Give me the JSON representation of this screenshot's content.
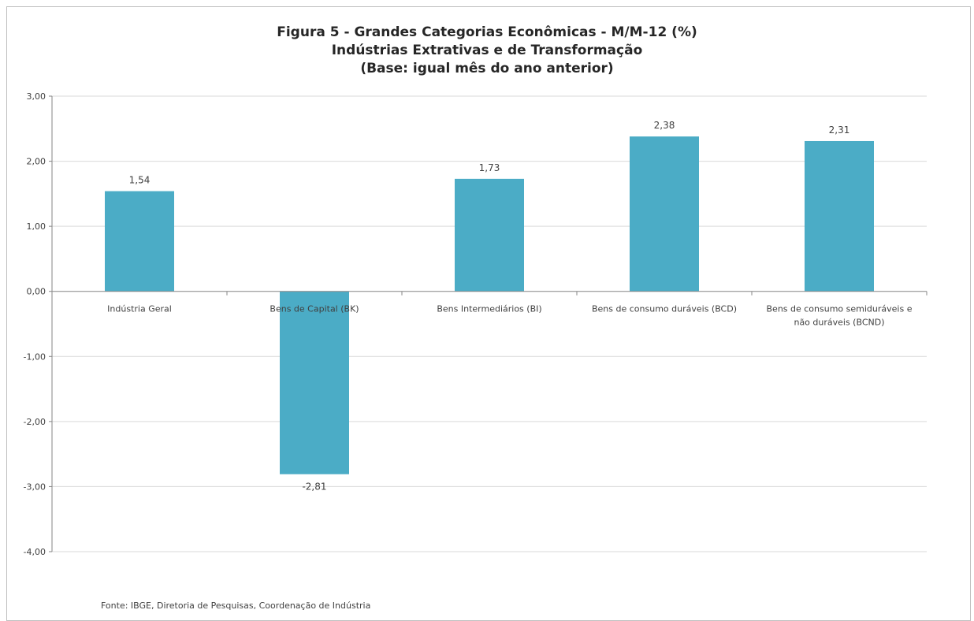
{
  "chart_data": {
    "type": "bar",
    "title": [
      "Figura 5 - Grandes Categorias Econômicas - M/M-12 (%)",
      "Indústrias  Extrativas e de Transformação",
      "(Base: igual mês do ano anterior)"
    ],
    "categories": [
      [
        "Indústria Geral"
      ],
      [
        "Bens de Capital (BK)"
      ],
      [
        "Bens Intermediários (BI)"
      ],
      [
        "Bens de consumo duráveis (BCD)"
      ],
      [
        "Bens de consumo semiduráveis e",
        "não duráveis (BCND)"
      ]
    ],
    "values": [
      1.54,
      -2.81,
      1.73,
      2.38,
      2.31
    ],
    "data_labels": [
      "1,54",
      "-2,81",
      "1,73",
      "2,38",
      "2,31"
    ],
    "ylim": [
      -4,
      3
    ],
    "yticks": [
      3,
      2,
      1,
      0,
      -1,
      -2,
      -3,
      -4
    ],
    "ytick_labels": [
      "3,00",
      "2,00",
      "1,00",
      "0,00",
      "-1,00",
      "-2,00",
      "-3,00",
      "-4,00"
    ],
    "grid": true,
    "legend": "none",
    "bar_color": "#4bacc6",
    "gridline_color": "#d9d9d9",
    "axis_color": "#868686"
  },
  "source_note": "Fonte: IBGE, Diretoria de Pesquisas, Coordenação de Indústria"
}
